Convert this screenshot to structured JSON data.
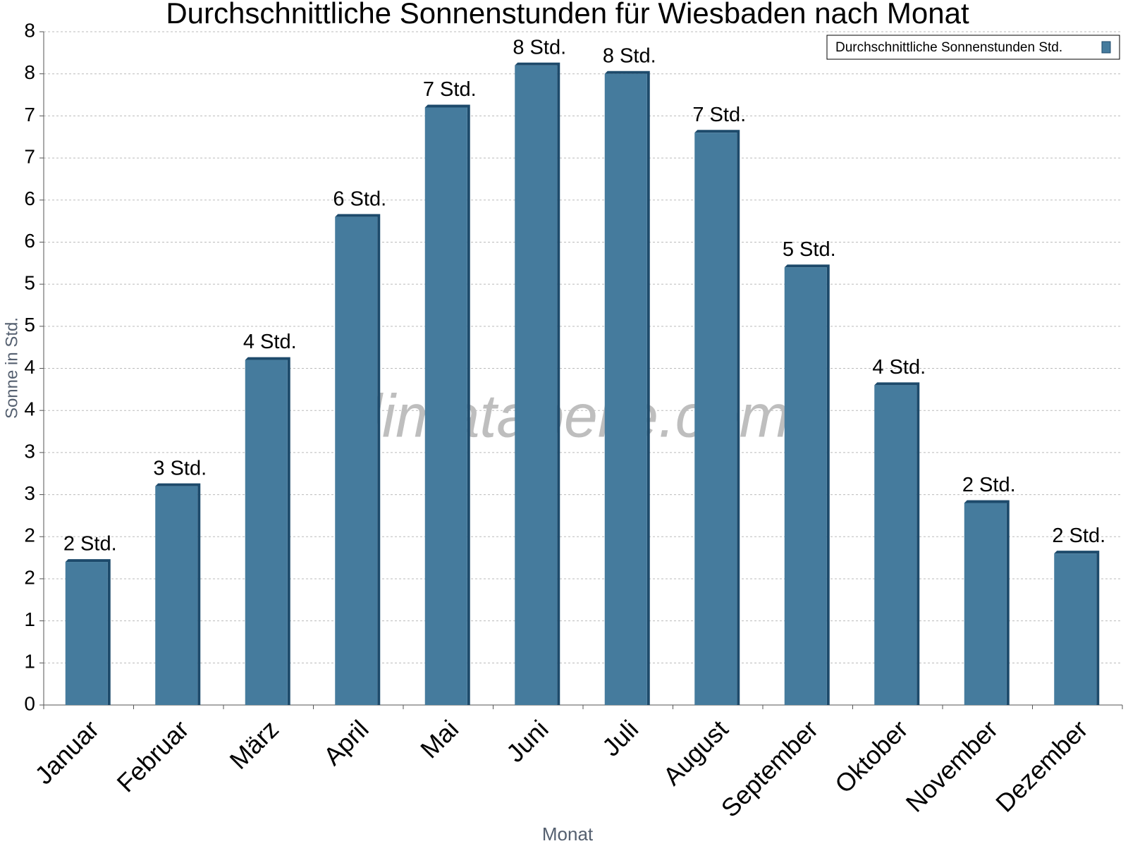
{
  "chart_data": {
    "type": "bar",
    "title": "Durchschnittliche Sonnenstunden für Wiesbaden nach Monat",
    "x_label": "Monat",
    "y_label": "Sonne in Std.",
    "watermark": "klimatabelle.com",
    "categories": [
      "Januar",
      "Februar",
      "März",
      "April",
      "Mai",
      "Juni",
      "Juli",
      "August",
      "September",
      "Oktober",
      "November",
      "Dezember"
    ],
    "series": [
      {
        "name": "Durchschnittliche Sonnenstunden Std.",
        "color": "#457b9d",
        "values": [
          1.7,
          2.6,
          4.1,
          5.8,
          7.1,
          7.6,
          7.5,
          6.8,
          5.2,
          3.8,
          2.4,
          1.8
        ],
        "value_labels": [
          "2 Std.",
          "3 Std.",
          "4 Std.",
          "6 Std.",
          "7 Std.",
          "8 Std.",
          "8 Std.",
          "7 Std.",
          "5 Std.",
          "4 Std.",
          "2 Std.",
          "2 Std."
        ]
      }
    ],
    "ylim": [
      0,
      8
    ],
    "yticks": [
      0,
      {
        "value": 0.5,
        "label": "1"
      },
      1,
      {
        "value": 1.5,
        "label": "2"
      },
      2,
      {
        "value": 2.5,
        "label": "3"
      },
      3,
      {
        "value": 3.5,
        "label": "4"
      },
      4,
      {
        "value": 4.5,
        "label": "5"
      },
      5,
      {
        "value": 5.5,
        "label": "6"
      },
      6,
      {
        "value": 6.5,
        "label": "7"
      },
      7,
      {
        "value": 7.5,
        "label": "8"
      },
      8
    ],
    "grid": true,
    "legend_position": "top-right"
  }
}
